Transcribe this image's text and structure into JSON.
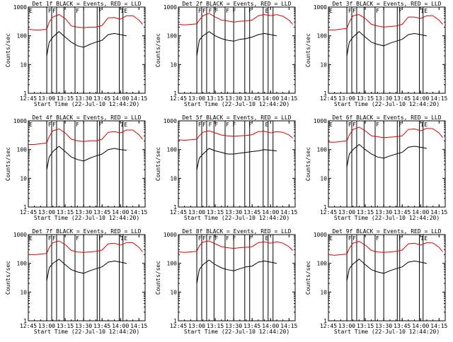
{
  "page": {
    "start_label": "Start Time (22-Jul-10 12:44:20)",
    "ylabel": "Counts/sec"
  },
  "colors": {
    "events": "#000000",
    "lld": "#dd0000",
    "axis": "#000000"
  },
  "chart_data": [
    {
      "type": "line",
      "title": "Det 1f BLACK = Events, RED = LLD",
      "xlabel": "Start Time (22-Jul-10 12:44:20)",
      "ylabel": "Counts/sec",
      "xlim": [
        "12:45",
        "14:20"
      ],
      "ylim": [
        1,
        1000
      ],
      "yscale": "log",
      "xticks": [
        "12:45",
        "13:00",
        "13:15",
        "13:30",
        "13:45",
        "14:00",
        "14:15"
      ],
      "yticks": [
        "1",
        "10",
        "100",
        "1000"
      ],
      "flag_labels": [
        "E",
        "F",
        "F",
        "F",
        "F",
        "IE"
      ],
      "series": [
        {
          "x": [
            "12:45",
            "12:50",
            "12:55",
            "13:00",
            "13:02",
            "13:05",
            "13:10",
            "13:15",
            "13:20",
            "13:25",
            "13:30",
            "13:35",
            "13:40",
            "13:45",
            "13:50",
            "13:55",
            "14:00",
            "14:05",
            "14:10",
            "14:15",
            "14:18"
          ],
          "values": [
            170,
            160,
            160,
            170,
            300,
            450,
            550,
            400,
            220,
            200,
            190,
            200,
            200,
            230,
            420,
            430,
            380,
            500,
            500,
            350,
            250
          ]
        },
        {
          "x": [
            "13:00",
            "13:02",
            "13:05",
            "13:10",
            "13:15",
            "13:20",
            "13:25",
            "13:30",
            "13:35",
            "13:40",
            "13:45",
            "13:50",
            "13:55",
            "14:00",
            "14:05"
          ],
          "values": [
            20,
            60,
            90,
            140,
            90,
            60,
            45,
            40,
            50,
            60,
            70,
            110,
            120,
            110,
            100
          ]
        }
      ]
    },
    {
      "type": "line",
      "title": "Det 2f BLACK = Events, RED = LLD",
      "xlabel": "Start Time (22-Jul-10 12:44:20)",
      "ylabel": "Counts/sec",
      "xlim": [
        "12:45",
        "14:20"
      ],
      "ylim": [
        1,
        1000
      ],
      "yscale": "log",
      "xticks": [
        "12:45",
        "13:00",
        "13:15",
        "13:30",
        "13:45",
        "14:00",
        "14:15"
      ],
      "yticks": [
        "1",
        "10",
        "100",
        "1000"
      ],
      "flag_labels": [
        "F",
        "F",
        "F",
        "F",
        "F",
        "F",
        "F",
        "E"
      ],
      "series": [
        {
          "x": [
            "12:45",
            "12:50",
            "12:55",
            "13:00",
            "13:02",
            "13:05",
            "13:10",
            "13:15",
            "13:20",
            "13:25",
            "13:30",
            "13:35",
            "13:40",
            "13:45",
            "13:50",
            "13:55",
            "14:00",
            "14:05",
            "14:10",
            "14:15",
            "14:18"
          ],
          "values": [
            250,
            240,
            250,
            260,
            350,
            500,
            600,
            450,
            350,
            330,
            300,
            320,
            330,
            350,
            500,
            550,
            500,
            550,
            480,
            350,
            250
          ]
        },
        {
          "x": [
            "13:00",
            "13:02",
            "13:05",
            "13:10",
            "13:15",
            "13:20",
            "13:25",
            "13:30",
            "13:35",
            "13:40",
            "13:45",
            "13:50",
            "13:55",
            "14:00",
            "14:05"
          ],
          "values": [
            20,
            70,
            100,
            140,
            100,
            80,
            70,
            65,
            75,
            80,
            90,
            110,
            120,
            110,
            100
          ]
        }
      ]
    },
    {
      "type": "line",
      "title": "Det 3f BLACK = Events, RED = LLD",
      "xlabel": "Start Time (22-Jul-10 12:44:20)",
      "ylabel": "Counts/sec",
      "xlim": [
        "12:45",
        "14:20"
      ],
      "ylim": [
        1,
        1000
      ],
      "yscale": "log",
      "xticks": [
        "12:45",
        "13:00",
        "13:15",
        "13:30",
        "13:45",
        "14:00",
        "14:15"
      ],
      "yticks": [
        "1",
        "10",
        "100",
        "1000"
      ],
      "flag_labels": [
        "E",
        "F",
        "F",
        "F",
        "F",
        "IE"
      ],
      "series": [
        {
          "x": [
            "12:45",
            "12:50",
            "12:55",
            "13:00",
            "13:02",
            "13:05",
            "13:10",
            "13:15",
            "13:20",
            "13:25",
            "13:30",
            "13:35",
            "13:40",
            "13:45",
            "13:50",
            "13:55",
            "14:00",
            "14:05",
            "14:10",
            "14:15",
            "14:18"
          ],
          "values": [
            160,
            160,
            170,
            180,
            300,
            500,
            550,
            400,
            250,
            220,
            200,
            210,
            220,
            250,
            450,
            450,
            400,
            500,
            500,
            350,
            250
          ]
        },
        {
          "x": [
            "13:00",
            "13:02",
            "13:05",
            "13:10",
            "13:15",
            "13:20",
            "13:25",
            "13:30",
            "13:35",
            "13:40",
            "13:45",
            "13:50",
            "13:55",
            "14:00",
            "14:05"
          ],
          "values": [
            20,
            60,
            90,
            140,
            90,
            60,
            50,
            45,
            55,
            65,
            75,
            110,
            120,
            110,
            100
          ]
        }
      ]
    },
    {
      "type": "line",
      "title": "Det 4f BLACK = Events, RED = LLD",
      "xlabel": "Start Time (22-Jul-10 12:44:20)",
      "ylabel": "Counts/sec",
      "xlim": [
        "12:45",
        "14:20"
      ],
      "ylim": [
        1,
        1000
      ],
      "yscale": "log",
      "xticks": [
        "12:45",
        "13:00",
        "13:15",
        "13:30",
        "13:45",
        "14:00",
        "14:15"
      ],
      "yticks": [
        "1",
        "10",
        "100",
        "1000"
      ],
      "flag_labels": [
        "E",
        "F",
        "F",
        "F",
        "F",
        "IE"
      ],
      "series": [
        {
          "x": [
            "12:45",
            "12:50",
            "12:55",
            "13:00",
            "13:02",
            "13:05",
            "13:10",
            "13:15",
            "13:20",
            "13:25",
            "13:30",
            "13:35",
            "13:40",
            "13:45",
            "13:50",
            "13:55",
            "14:00",
            "14:05",
            "14:10",
            "14:15",
            "14:18"
          ],
          "values": [
            150,
            150,
            160,
            170,
            280,
            450,
            520,
            380,
            230,
            200,
            190,
            200,
            200,
            230,
            400,
            420,
            380,
            480,
            480,
            330,
            230
          ]
        },
        {
          "x": [
            "13:00",
            "13:02",
            "13:05",
            "13:10",
            "13:15",
            "13:20",
            "13:25",
            "13:30",
            "13:35",
            "13:40",
            "13:45",
            "13:50",
            "13:55",
            "14:00",
            "14:05"
          ],
          "values": [
            20,
            55,
            85,
            130,
            85,
            55,
            45,
            40,
            50,
            60,
            70,
            100,
            110,
            100,
            95
          ]
        }
      ]
    },
    {
      "type": "line",
      "title": "Det 5f BLACK = Events, RED = LLD",
      "xlabel": "Start Time (22-Jul-10 12:44:20)",
      "ylabel": "Counts/sec",
      "xlim": [
        "12:45",
        "14:20"
      ],
      "ylim": [
        1,
        1000
      ],
      "yscale": "log",
      "xticks": [
        "12:45",
        "13:00",
        "13:15",
        "13:30",
        "13:45",
        "14:00",
        "14:15"
      ],
      "yticks": [
        "1",
        "10",
        "100",
        "1000"
      ],
      "flag_labels": [
        "F",
        "F",
        "F",
        "F",
        "F",
        "F",
        "F",
        "E"
      ],
      "series": [
        {
          "x": [
            "12:45",
            "12:50",
            "12:55",
            "13:00",
            "13:02",
            "13:05",
            "13:10",
            "13:15",
            "13:20",
            "13:25",
            "13:30",
            "13:35",
            "13:40",
            "13:45",
            "13:50",
            "13:55",
            "14:00",
            "14:05",
            "14:10",
            "14:15",
            "14:18"
          ],
          "values": [
            220,
            210,
            220,
            230,
            300,
            400,
            450,
            380,
            320,
            300,
            290,
            300,
            310,
            330,
            420,
            430,
            380,
            420,
            400,
            320,
            250
          ]
        },
        {
          "x": [
            "13:00",
            "13:02",
            "13:05",
            "13:10",
            "13:15",
            "13:20",
            "13:25",
            "13:30",
            "13:35",
            "13:40",
            "13:45",
            "13:50",
            "13:55",
            "14:00",
            "14:05"
          ],
          "values": [
            20,
            50,
            70,
            110,
            90,
            80,
            70,
            70,
            75,
            80,
            85,
            90,
            100,
            95,
            90
          ]
        }
      ]
    },
    {
      "type": "line",
      "title": "Det 6f BLACK = Events, RED = LLD",
      "xlabel": "Start Time (22-Jul-10 12:44:20)",
      "ylabel": "Counts/sec",
      "xlim": [
        "12:45",
        "14:20"
      ],
      "ylim": [
        1,
        1000
      ],
      "yscale": "log",
      "xticks": [
        "12:45",
        "13:00",
        "13:15",
        "13:30",
        "13:45",
        "14:00",
        "14:15"
      ],
      "yticks": [
        "1",
        "10",
        "100",
        "1000"
      ],
      "flag_labels": [
        "E",
        "F",
        "F",
        "F",
        "F",
        "IE"
      ],
      "series": [
        {
          "x": [
            "12:45",
            "12:50",
            "12:55",
            "13:00",
            "13:02",
            "13:05",
            "13:10",
            "13:15",
            "13:20",
            "13:25",
            "13:30",
            "13:35",
            "13:40",
            "13:45",
            "13:50",
            "13:55",
            "14:00",
            "14:05",
            "14:10",
            "14:15",
            "14:18"
          ],
          "values": [
            180,
            180,
            190,
            200,
            320,
            500,
            600,
            450,
            300,
            280,
            260,
            270,
            280,
            300,
            500,
            520,
            450,
            550,
            530,
            380,
            260
          ]
        },
        {
          "x": [
            "13:00",
            "13:02",
            "13:05",
            "13:10",
            "13:15",
            "13:20",
            "13:25",
            "13:30",
            "13:35",
            "13:40",
            "13:45",
            "13:50",
            "13:55",
            "14:00",
            "14:05"
          ],
          "values": [
            25,
            70,
            100,
            150,
            100,
            70,
            55,
            50,
            60,
            70,
            80,
            120,
            130,
            120,
            110
          ]
        }
      ]
    },
    {
      "type": "line",
      "title": "Det 7f BLACK = Events, RED = LLD",
      "xlabel": "Start Time (22-Jul-10 12:44:20)",
      "ylabel": "Counts/sec",
      "xlim": [
        "12:45",
        "14:20"
      ],
      "ylim": [
        1,
        1000
      ],
      "yscale": "log",
      "xticks": [
        "12:45",
        "13:00",
        "13:15",
        "13:30",
        "13:45",
        "14:00",
        "14:15"
      ],
      "yticks": [
        "1",
        "10",
        "100",
        "1000"
      ],
      "flag_labels": [
        "E",
        "F",
        "F",
        "F",
        "F",
        "IE"
      ],
      "series": [
        {
          "x": [
            "12:45",
            "12:50",
            "12:55",
            "13:00",
            "13:02",
            "13:05",
            "13:10",
            "13:15",
            "13:20",
            "13:25",
            "13:30",
            "13:35",
            "13:40",
            "13:45",
            "13:50",
            "13:55",
            "14:00",
            "14:05",
            "14:10",
            "14:15",
            "14:18"
          ],
          "values": [
            200,
            200,
            210,
            220,
            350,
            520,
            600,
            450,
            280,
            250,
            240,
            250,
            260,
            290,
            480,
            500,
            430,
            530,
            520,
            360,
            250
          ]
        },
        {
          "x": [
            "13:00",
            "13:02",
            "13:05",
            "13:10",
            "13:15",
            "13:20",
            "13:25",
            "13:30",
            "13:35",
            "13:40",
            "13:45",
            "13:50",
            "13:55",
            "14:00",
            "14:05"
          ],
          "values": [
            25,
            70,
            100,
            140,
            90,
            60,
            50,
            45,
            55,
            65,
            75,
            110,
            120,
            110,
            100
          ]
        }
      ]
    },
    {
      "type": "line",
      "title": "Det 8f BLACK = Events, RED = LLD",
      "xlabel": "Start Time (22-Jul-10 12:44:20)",
      "ylabel": "Counts/sec",
      "xlim": [
        "12:45",
        "14:20"
      ],
      "ylim": [
        1,
        1000
      ],
      "yscale": "log",
      "xticks": [
        "12:45",
        "13:00",
        "13:15",
        "13:30",
        "13:45",
        "14:00",
        "14:15"
      ],
      "yticks": [
        "1",
        "10",
        "100",
        "1000"
      ],
      "flag_labels": [
        "F",
        "F",
        "F",
        "F",
        "F",
        "F",
        "F",
        "E"
      ],
      "series": [
        {
          "x": [
            "12:45",
            "12:50",
            "12:55",
            "13:00",
            "13:02",
            "13:05",
            "13:10",
            "13:15",
            "13:20",
            "13:25",
            "13:30",
            "13:35",
            "13:40",
            "13:45",
            "13:50",
            "13:55",
            "14:00",
            "14:05",
            "14:10",
            "14:15",
            "14:18"
          ],
          "values": [
            250,
            240,
            250,
            260,
            400,
            550,
            600,
            480,
            380,
            350,
            330,
            350,
            360,
            380,
            520,
            560,
            500,
            560,
            500,
            380,
            280
          ]
        },
        {
          "x": [
            "13:00",
            "13:02",
            "13:05",
            "13:10",
            "13:15",
            "13:20",
            "13:25",
            "13:30",
            "13:35",
            "13:40",
            "13:45",
            "13:50",
            "13:55",
            "14:00",
            "14:05"
          ],
          "values": [
            20,
            60,
            90,
            130,
            90,
            70,
            60,
            55,
            65,
            75,
            80,
            110,
            120,
            110,
            100
          ]
        }
      ]
    },
    {
      "type": "line",
      "title": "Det 9f BLACK = Events, RED = LLD",
      "xlabel": "Start Time (22-Jul-10 12:44:20)",
      "ylabel": "Counts/sec",
      "xlim": [
        "12:45",
        "14:20"
      ],
      "ylim": [
        1,
        1000
      ],
      "yscale": "log",
      "xticks": [
        "12:45",
        "13:00",
        "13:15",
        "13:30",
        "13:45",
        "14:00",
        "14:15"
      ],
      "yticks": [
        "1",
        "10",
        "100",
        "1000"
      ],
      "flag_labels": [
        "E",
        "F",
        "F",
        "F",
        "F",
        "IE"
      ],
      "series": [
        {
          "x": [
            "12:45",
            "12:50",
            "12:55",
            "13:00",
            "13:02",
            "13:05",
            "13:10",
            "13:15",
            "13:20",
            "13:25",
            "13:30",
            "13:35",
            "13:40",
            "13:45",
            "13:50",
            "13:55",
            "14:00",
            "14:05",
            "14:10",
            "14:15",
            "14:18"
          ],
          "values": [
            200,
            190,
            200,
            210,
            330,
            500,
            580,
            430,
            280,
            250,
            240,
            250,
            260,
            290,
            480,
            500,
            430,
            520,
            510,
            360,
            250
          ]
        },
        {
          "x": [
            "13:00",
            "13:02",
            "13:05",
            "13:10",
            "13:15",
            "13:20",
            "13:25",
            "13:30",
            "13:35",
            "13:40",
            "13:45",
            "13:50",
            "13:55",
            "14:00",
            "14:05"
          ],
          "values": [
            25,
            65,
            95,
            140,
            90,
            60,
            50,
            45,
            55,
            65,
            75,
            110,
            120,
            110,
            100
          ]
        }
      ]
    }
  ]
}
